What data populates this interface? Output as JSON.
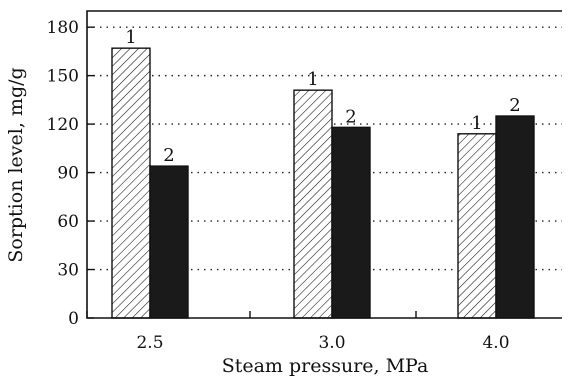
{
  "chart_data": {
    "type": "bar",
    "xlabel": "Steam pressure, MPa",
    "ylabel": "Sorption level, mg/g",
    "categories": [
      "2.5",
      "3.0",
      "4.0"
    ],
    "series": [
      {
        "name": "1",
        "values": [
          167,
          141,
          114
        ],
        "style": "hatched",
        "color": "#ffffff"
      },
      {
        "name": "2",
        "values": [
          94,
          118,
          125
        ],
        "style": "solid",
        "color": "#1a1a1a"
      }
    ],
    "ylim": [
      0,
      190
    ],
    "yticks": [
      0,
      30,
      60,
      90,
      120,
      150,
      180
    ],
    "grid": "y-dotted",
    "legend": "none"
  }
}
